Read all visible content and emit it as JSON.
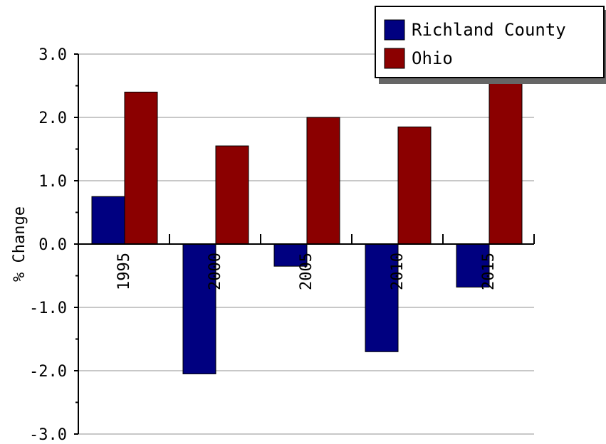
{
  "chart_data": {
    "type": "bar",
    "title": "",
    "xlabel": "",
    "ylabel": "% Change",
    "categories": [
      "1995",
      "2000",
      "2005",
      "2010",
      "2015"
    ],
    "series": [
      {
        "name": "Richland County",
        "color": "#000080",
        "values": [
          0.75,
          -2.05,
          -0.35,
          -1.7,
          -0.68
        ]
      },
      {
        "name": "Ohio",
        "color": "#8b0000",
        "values": [
          2.4,
          1.55,
          2.0,
          1.85,
          2.55
        ]
      }
    ],
    "ylim": [
      -3.0,
      3.0
    ],
    "yticks": [
      "3.0",
      "2.0",
      "1.0",
      "0.0",
      "-1.0",
      "-2.0",
      "-3.0"
    ],
    "grid": true,
    "legend_position": "top-right"
  }
}
